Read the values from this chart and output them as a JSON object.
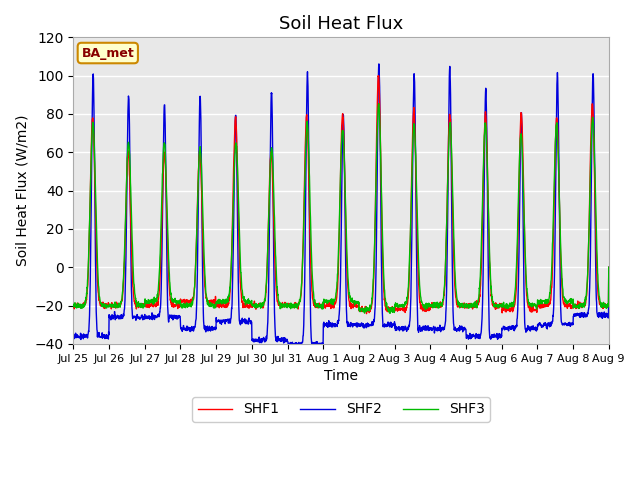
{
  "title": "Soil Heat Flux",
  "xlabel": "Time",
  "ylabel": "Soil Heat Flux (W/m2)",
  "ylim": [
    -40,
    120
  ],
  "yticks": [
    -40,
    -20,
    0,
    20,
    40,
    60,
    80,
    100,
    120
  ],
  "legend_labels": [
    "SHF1",
    "SHF2",
    "SHF3"
  ],
  "shf1_color": "#ff0000",
  "shf2_color": "#0000dd",
  "shf3_color": "#00bb00",
  "annotation_text": "BA_met",
  "annotation_bg": "#ffffcc",
  "annotation_border": "#cc8800",
  "annotation_text_color": "#880000",
  "plot_bg_color": "#e8e8e8",
  "grid_color": "#ffffff",
  "tick_labels": [
    "Jul 25",
    "Jul 26",
    "Jul 27",
    "Jul 28",
    "Jul 29",
    "Jul 30",
    "Jul 31",
    "Aug 1",
    "Aug 2",
    "Aug 3",
    "Aug 4",
    "Aug 5",
    "Aug 6",
    "Aug 7",
    "Aug 8",
    "Aug 9"
  ]
}
